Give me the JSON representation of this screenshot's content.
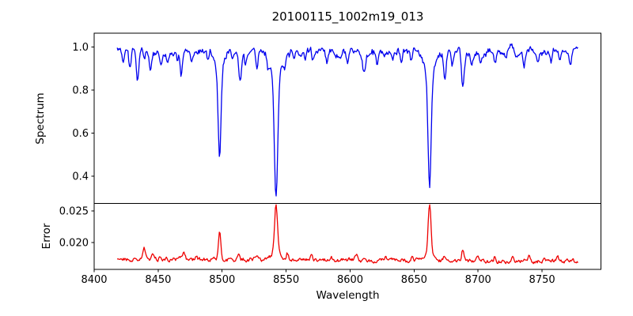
{
  "figure": {
    "title": "20100115_1002m19_013",
    "background": "#ffffff",
    "spine_color": "#000000"
  },
  "xaxis": {
    "label": "Wavelength",
    "xlim": [
      8400,
      8796
    ],
    "ticks": [
      {
        "value": 8400,
        "label": "8400"
      },
      {
        "value": 8450,
        "label": "8450"
      },
      {
        "value": 8500,
        "label": "8500"
      },
      {
        "value": 8550,
        "label": "8550"
      },
      {
        "value": 8600,
        "label": "8600"
      },
      {
        "value": 8650,
        "label": "8650"
      },
      {
        "value": 8700,
        "label": "8700"
      },
      {
        "value": 8750,
        "label": "8750"
      }
    ]
  },
  "chart_data": [
    {
      "type": "line",
      "panel": "spectrum",
      "ylabel": "Spectrum",
      "line_color": "#0000ee",
      "xlim": [
        8400,
        8796
      ],
      "ylim": [
        0.273,
        1.064
      ],
      "yticks": [
        {
          "value": 0.4,
          "label": "0.4"
        },
        {
          "value": 0.6,
          "label": "0.6"
        },
        {
          "value": 0.8,
          "label": "0.8"
        },
        {
          "value": 1.0,
          "label": "1.0"
        }
      ],
      "x_start": 8418,
      "x_end": 8778,
      "x_step": 0.6,
      "continuum": 0.978,
      "clip_max": 1.035,
      "seed": 20100115,
      "noise": {
        "ar1_coef": 0.72,
        "ar1_amp": 0.024,
        "ar2_coef": 0.45,
        "ar2_amp": 0.03,
        "ar2_mix": 0.55
      },
      "strong_lines": [
        {
          "center": 8498.0,
          "core_depth": 0.38,
          "core_width": 1.1,
          "wing_depth": 0.09,
          "wing_width": 3.0
        },
        {
          "center": 8542.1,
          "core_depth": 0.56,
          "core_width": 1.3,
          "wing_depth": 0.115,
          "wing_width": 4.0
        },
        {
          "center": 8662.1,
          "core_depth": 0.52,
          "core_width": 1.2,
          "wing_depth": 0.11,
          "wing_width": 3.6
        }
      ],
      "weak_lines": [
        [
          8423,
          0.06,
          0.8
        ],
        [
          8428,
          0.09,
          0.9
        ],
        [
          8434,
          0.14,
          1.0
        ],
        [
          8439,
          0.05,
          0.8
        ],
        [
          8444,
          0.08,
          0.9
        ],
        [
          8452,
          0.05,
          0.8
        ],
        [
          8457,
          0.04,
          0.8
        ],
        [
          8465,
          0.05,
          0.8
        ],
        [
          8468,
          0.1,
          0.9
        ],
        [
          8476,
          0.04,
          0.8
        ],
        [
          8489,
          0.04,
          0.8
        ],
        [
          8508,
          0.05,
          0.8
        ],
        [
          8514,
          0.14,
          1.0
        ],
        [
          8518,
          0.05,
          0.8
        ],
        [
          8527,
          0.08,
          0.9
        ],
        [
          8536,
          0.05,
          0.8
        ],
        [
          8549,
          0.05,
          0.8
        ],
        [
          8556,
          0.04,
          0.8
        ],
        [
          8565,
          0.04,
          0.8
        ],
        [
          8571,
          0.05,
          0.8
        ],
        [
          8582,
          0.07,
          0.9
        ],
        [
          8592,
          0.04,
          0.8
        ],
        [
          8598,
          0.07,
          0.9
        ],
        [
          8611,
          0.09,
          1.0
        ],
        [
          8621,
          0.05,
          0.8
        ],
        [
          8633,
          0.04,
          0.8
        ],
        [
          8640,
          0.04,
          0.8
        ],
        [
          8648,
          0.06,
          0.9
        ],
        [
          8674,
          0.11,
          1.0
        ],
        [
          8680,
          0.05,
          0.8
        ],
        [
          8688,
          0.16,
          1.1
        ],
        [
          8695,
          0.05,
          0.8
        ],
        [
          8702,
          0.04,
          0.8
        ],
        [
          8713,
          0.06,
          0.9
        ],
        [
          8722,
          0.04,
          0.8
        ],
        [
          8730,
          0.04,
          0.8
        ],
        [
          8736,
          0.06,
          0.9
        ],
        [
          8747,
          0.04,
          0.8
        ],
        [
          8757,
          0.05,
          0.8
        ],
        [
          8764,
          0.04,
          0.8
        ],
        [
          8772,
          0.05,
          0.8
        ]
      ],
      "key_values": {
        "ca_triplet_minima": [
          {
            "wavelength": 8498,
            "flux": 0.5
          },
          {
            "wavelength": 8542,
            "flux": 0.3
          },
          {
            "wavelength": 8662,
            "flux": 0.35
          }
        ],
        "continuum_level": 0.98
      }
    },
    {
      "type": "line",
      "panel": "error",
      "ylabel": "Error",
      "line_color": "#ee0000",
      "xlim": [
        8400,
        8796
      ],
      "ylim": [
        0.01575,
        0.0262
      ],
      "yticks": [
        {
          "value": 0.02,
          "label": "0.020"
        },
        {
          "value": 0.025,
          "label": "0.025"
        }
      ],
      "x_start": 8418,
      "x_end": 8778,
      "x_step": 0.6,
      "baseline_start": 0.01742,
      "baseline_end": 0.017,
      "clip_max": 0.026,
      "seed": 1002,
      "noise": {
        "ar_coef": 0.6,
        "ar_amp": 0.00055
      },
      "peaks": [
        [
          8439,
          0.0017,
          1.0
        ],
        [
          8446,
          0.0008,
          0.8
        ],
        [
          8452,
          0.0006,
          0.8
        ],
        [
          8470,
          0.0009,
          0.8
        ],
        [
          8480,
          0.0005,
          0.8
        ],
        [
          8498,
          0.0042,
          0.9
        ],
        [
          8513,
          0.0008,
          0.8
        ],
        [
          8527,
          0.0006,
          0.8
        ],
        [
          8542.1,
          0.0076,
          1.15
        ],
        [
          8542.1,
          0.0011,
          3.2
        ],
        [
          8551,
          0.0011,
          0.9
        ],
        [
          8570,
          0.0007,
          0.8
        ],
        [
          8585,
          0.0005,
          0.8
        ],
        [
          8605,
          0.0009,
          0.9
        ],
        [
          8628,
          0.0008,
          0.8
        ],
        [
          8648,
          0.0005,
          0.8
        ],
        [
          8662.1,
          0.0079,
          1.1
        ],
        [
          8662.1,
          0.0011,
          3.2
        ],
        [
          8674,
          0.0007,
          0.8
        ],
        [
          8688,
          0.0019,
          0.9
        ],
        [
          8700,
          0.0005,
          0.8
        ],
        [
          8713,
          0.0007,
          0.8
        ],
        [
          8727,
          0.0005,
          0.8
        ],
        [
          8740,
          0.0008,
          0.8
        ],
        [
          8752,
          0.0005,
          0.8
        ],
        [
          8762,
          0.0006,
          0.8
        ]
      ],
      "key_values": {
        "error_baseline": 0.0172,
        "error_peak_maxima": [
          {
            "wavelength": 8498,
            "error": 0.0215
          },
          {
            "wavelength": 8542,
            "error": 0.0258
          },
          {
            "wavelength": 8662,
            "error": 0.026
          }
        ]
      }
    }
  ]
}
